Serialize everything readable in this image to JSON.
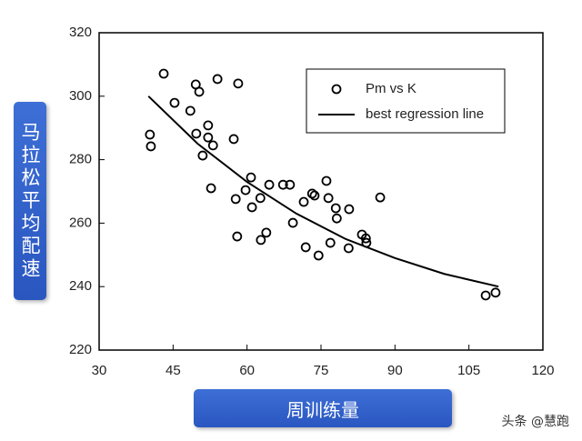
{
  "chart_data": {
    "type": "scatter",
    "xlabel": "周训练量",
    "ylabel": "马拉松平均配速",
    "xlim": [
      30,
      120
    ],
    "xticks": [
      30,
      45,
      60,
      75,
      90,
      105,
      120
    ],
    "ylim": [
      220,
      320
    ],
    "yticks": [
      220,
      240,
      260,
      280,
      300,
      320
    ],
    "legend": "top-right",
    "series": [
      {
        "name": "Pm vs K",
        "color": "#000000",
        "marker": "circle",
        "x": [
          40.3,
          40.5,
          43.1,
          45.3,
          48.5,
          49.6,
          50.3,
          49.7,
          51.0,
          52.1,
          52.1,
          53.1,
          52.7,
          54.0,
          57.3,
          58.2,
          57.7,
          58.0,
          59.7,
          60.8,
          61.0,
          62.7,
          62.8,
          63.9,
          64.5,
          67.3,
          68.7,
          69.3,
          71.5,
          71.9,
          73.2,
          73.7,
          74.5,
          76.1,
          76.5,
          76.9,
          78.0,
          78.2,
          80.7,
          80.6,
          83.3,
          84.1,
          84.2,
          87.0,
          108.4,
          110.4
        ],
        "values": [
          287.9,
          284.2,
          307.1,
          297.9,
          295.4,
          303.7,
          301.4,
          288.2,
          281.3,
          290.8,
          287.0,
          284.5,
          271.0,
          305.4,
          286.5,
          304.0,
          267.6,
          255.8,
          270.4,
          274.4,
          265.0,
          267.9,
          254.7,
          257.0,
          272.1,
          272.1,
          272.1,
          260.1,
          266.7,
          252.4,
          269.3,
          268.7,
          249.8,
          273.3,
          267.9,
          253.8,
          264.7,
          261.5,
          264.4,
          252.1,
          256.4,
          255.2,
          253.8,
          268.1,
          237.2,
          238.1
        ]
      },
      {
        "name": "best regression line",
        "color": "#000000",
        "marker": "line",
        "x": [
          40,
          50,
          60,
          70,
          80,
          90,
          100,
          111
        ],
        "values": [
          300,
          285,
          273,
          263,
          255,
          249,
          244,
          240
        ]
      }
    ]
  },
  "watermark": "头条 @慧跑"
}
